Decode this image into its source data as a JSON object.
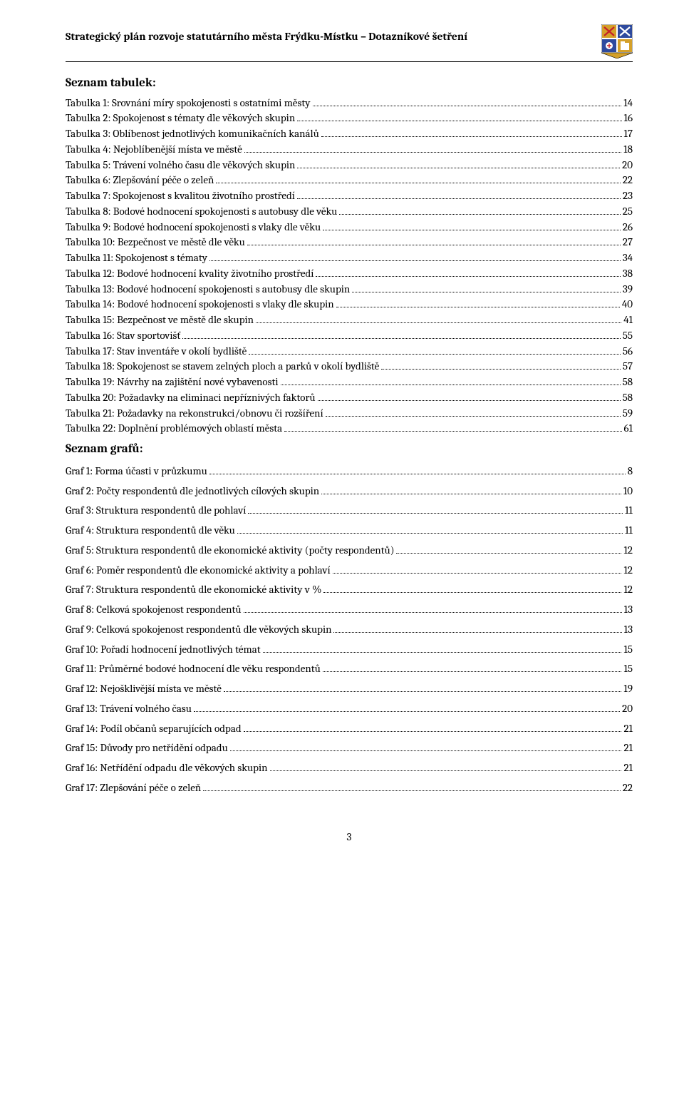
{
  "header": {
    "title": "Strategický plán rozvoje statutárního města  Frýdku-Místku – Dotazníkové šetření"
  },
  "sections": [
    {
      "heading": "Seznam tabulek:",
      "listClass": "tabulek-list",
      "items": [
        {
          "label": "Tabulka 1: Srovnání míry spokojenosti s ostatními městy",
          "page": "14"
        },
        {
          "label": "Tabulka 2: Spokojenost s tématy dle věkových skupin",
          "page": "16"
        },
        {
          "label": "Tabulka 3: Oblíbenost jednotlivých komunikačních kanálů",
          "page": "17"
        },
        {
          "label": "Tabulka 4: Nejoblíbenější místa ve městě",
          "page": "18"
        },
        {
          "label": "Tabulka 5: Trávení volného času dle věkových skupin",
          "page": "20"
        },
        {
          "label": "Tabulka 6: Zlepšování péče o zeleň",
          "page": "22"
        },
        {
          "label": "Tabulka 7: Spokojenost s kvalitou životního prostředí",
          "page": "23"
        },
        {
          "label": "Tabulka 8: Bodové hodnocení spokojenosti s autobusy dle věku",
          "page": "25"
        },
        {
          "label": "Tabulka 9: Bodové hodnocení spokojenosti s vlaky dle věku",
          "page": "26"
        },
        {
          "label": "Tabulka 10: Bezpečnost ve městě dle věku",
          "page": "27"
        },
        {
          "label": "Tabulka 11: Spokojenost s tématy",
          "page": "34"
        },
        {
          "label": "Tabulka 12: Bodové hodnocení kvality životního prostředí",
          "page": "38"
        },
        {
          "label": "Tabulka 13: Bodové hodnocení spokojenosti s autobusy dle skupin",
          "page": "39"
        },
        {
          "label": "Tabulka 14: Bodové hodnocení spokojenosti s vlaky dle skupin",
          "page": "40"
        },
        {
          "label": "Tabulka 15: Bezpečnost ve městě dle skupin",
          "page": "41"
        },
        {
          "label": "Tabulka 16: Stav sportovišť",
          "page": "55"
        },
        {
          "label": "Tabulka 17: Stav inventáře v okolí bydliště",
          "page": "56"
        },
        {
          "label": "Tabulka 18: Spokojenost se stavem zelných ploch a parků v okolí bydliště",
          "page": "57"
        },
        {
          "label": "Tabulka 19: Návrhy na zajištění nové vybavenosti",
          "page": "58"
        },
        {
          "label": "Tabulka 20: Požadavky na eliminaci nepříznivých faktorů",
          "page": "58"
        },
        {
          "label": "Tabulka 21: Požadavky na rekonstrukci/obnovu či rozšíření",
          "page": "59"
        },
        {
          "label": "Tabulka 22: Doplnění problémových oblastí města",
          "page": "61"
        }
      ]
    },
    {
      "heading": "Seznam grafů:",
      "listClass": "grafu-list",
      "items": [
        {
          "label": "Graf 1: Forma účasti v průzkumu",
          "page": "8"
        },
        {
          "label": "Graf 2: Počty respondentů dle jednotlivých cílových skupin",
          "page": "10"
        },
        {
          "label": "Graf 3: Struktura respondentů dle pohlaví",
          "page": "11"
        },
        {
          "label": "Graf 4: Struktura respondentů dle věku",
          "page": "11"
        },
        {
          "label": "Graf 5: Struktura respondentů dle ekonomické aktivity (počty respondentů)",
          "page": "12"
        },
        {
          "label": "Graf 6: Poměr respondentů dle ekonomické aktivity a pohlaví",
          "page": "12"
        },
        {
          "label": "Graf 7: Struktura respondentů dle ekonomické aktivity v %",
          "page": "12"
        },
        {
          "label": "Graf 8: Celková spokojenost respondentů",
          "page": "13"
        },
        {
          "label": "Graf 9: Celková spokojenost respondentů dle věkových skupin",
          "page": "13"
        },
        {
          "label": "Graf 10: Pořadí hodnocení jednotlivých témat",
          "page": "15"
        },
        {
          "label": "Graf 11: Průměrné bodové hodnocení dle věku respondentů",
          "page": "15"
        },
        {
          "label": "Graf 12: Nejošklivější místa ve městě",
          "page": "19"
        },
        {
          "label": "Graf 13: Trávení volného času",
          "page": "20"
        },
        {
          "label": "Graf 14: Podíl občanů separujících odpad",
          "page": "21"
        },
        {
          "label": "Graf 15: Důvody pro netřídění odpadu",
          "page": "21"
        },
        {
          "label": "Graf 16: Netřídění odpadu dle věkových skupin",
          "page": "21"
        },
        {
          "label": "Graf 17: Zlepšování péče o zeleň",
          "page": "22"
        }
      ]
    }
  ],
  "pageNumber": "3",
  "crest": {
    "colors": {
      "gold": "#d4a029",
      "blue": "#2e4a9e",
      "red": "#c42028",
      "white": "#ffffff",
      "black": "#000000"
    }
  }
}
